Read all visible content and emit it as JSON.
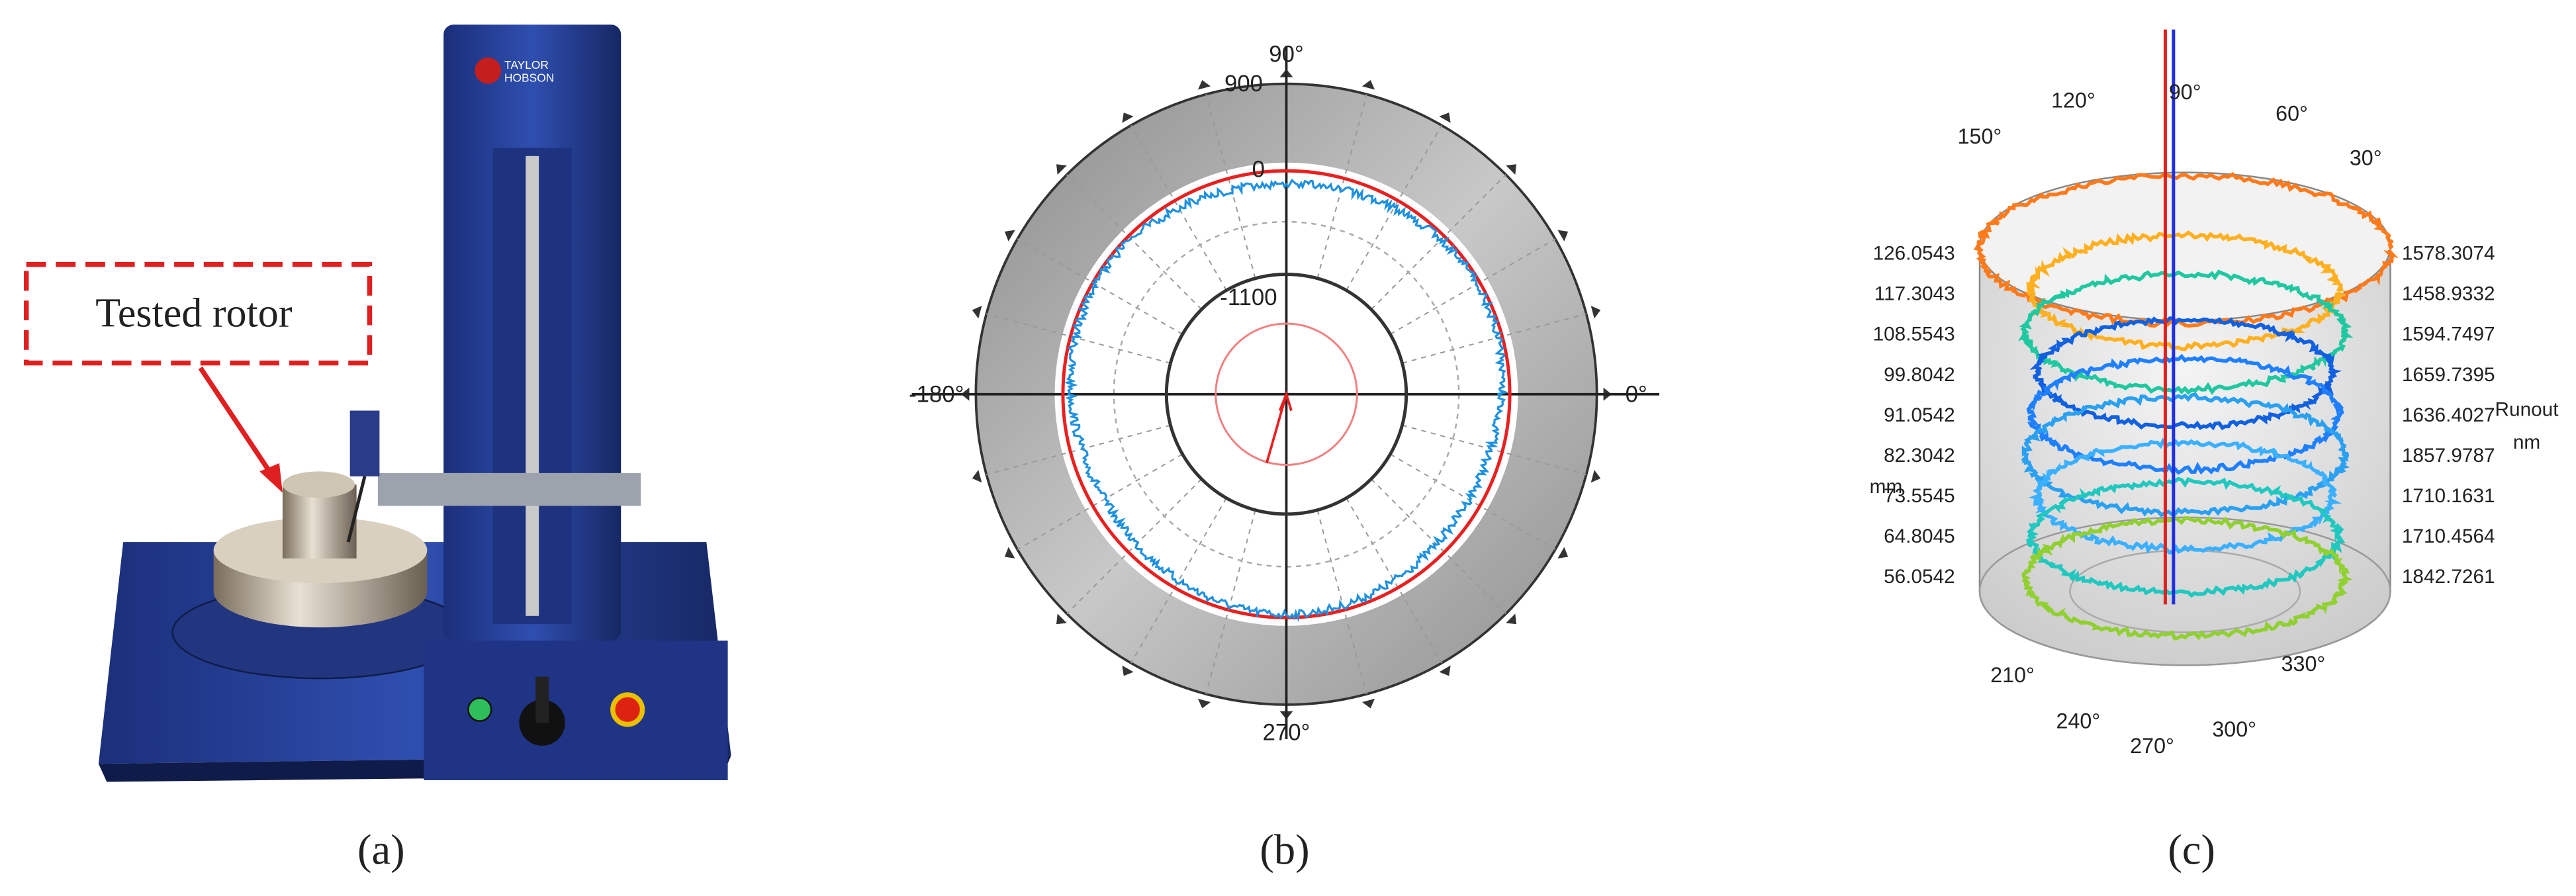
{
  "panels": {
    "a": {
      "label": "(a)",
      "annotation": "Tested rotor",
      "brand": [
        "TAYLOR",
        "HOBSON"
      ]
    },
    "b": {
      "label": "(b)",
      "angle_labels": [
        "90°",
        "-180°",
        "0°",
        "270°"
      ],
      "radial_labels": [
        "900",
        "0",
        "-1100"
      ]
    },
    "c": {
      "label": "(c)",
      "angle_labels": [
        "120°",
        "90°",
        "60°",
        "150°",
        "30°",
        "210°",
        "240°",
        "270°",
        "300°",
        "330°"
      ],
      "height_labels": [
        "126.0543",
        "117.3043",
        "108.5543",
        "99.8042",
        "91.0542",
        "82.3042",
        "73.5545",
        "64.8045",
        "56.0542"
      ],
      "runout_labels": [
        "1578.3074",
        "1458.9332",
        "1594.7497",
        "1659.7395",
        "1636.4027",
        "1857.9787",
        "1710.1631",
        "1710.4564",
        "1842.7261"
      ],
      "left_axis_title": "mm",
      "right_axis_title": [
        "Runout",
        "nm"
      ]
    }
  }
}
